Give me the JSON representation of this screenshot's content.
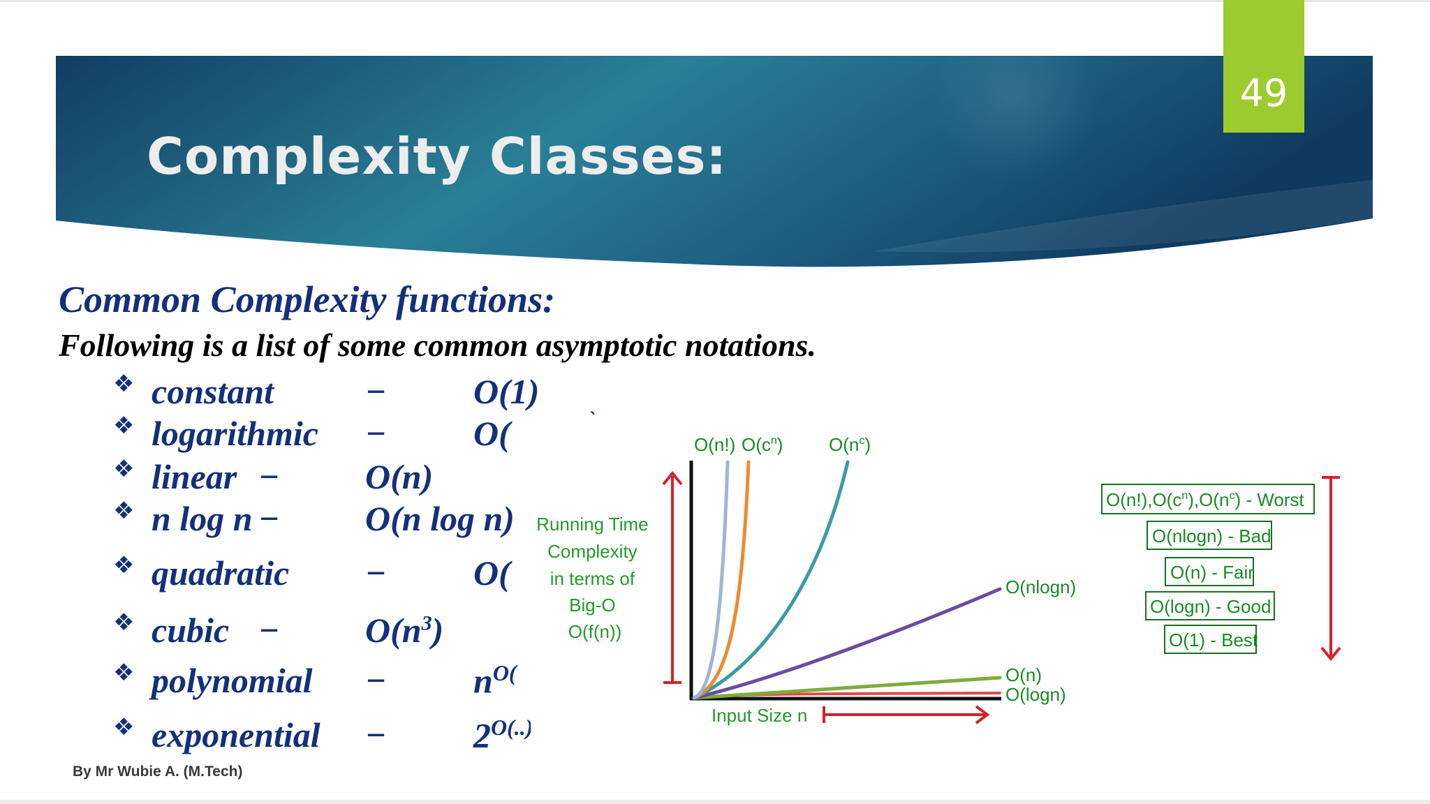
{
  "slide": {
    "title": "Complexity Classes:",
    "page_number": "49",
    "subtitle": "Common Complexity functions:",
    "intro": "Following is a list of some common asymptotic notations.",
    "footer": "By Mr Wubie A. (M.Tech)"
  },
  "list": {
    "bullet_glyph": "❖",
    "items": [
      {
        "term": "constant",
        "dash": "−",
        "notation": "O(1)"
      },
      {
        "term": "logarithmic",
        "dash": "−",
        "notation": "O(",
        "tail": "`"
      },
      {
        "term": "linear",
        "dash": "−",
        "notation": "O(n)"
      },
      {
        "term": "n log n",
        "dash": "−",
        "notation": "O(n log n)"
      },
      {
        "term": "quadratic",
        "dash": "−",
        "notation": "O("
      },
      {
        "term": "cubic",
        "dash": "−",
        "notation": "O(n",
        "sup": "3",
        "close": ")"
      },
      {
        "term": "polynomial",
        "dash": "−",
        "notation": "n",
        "sup": "O("
      },
      {
        "term": "exponential",
        "dash": "−",
        "notation": "2",
        "sup": "O(..)"
      }
    ]
  },
  "figure": {
    "ylabel_lines": [
      "Running Time",
      "Complexity",
      "in terms of",
      "Big-O",
      "O(f(n))"
    ],
    "xlabel": "Input Size n",
    "top_labels": {
      "fact": "O(n!)",
      "cn": "O(c",
      "cn_sup": "n",
      "cn_close": ")",
      "nc": "O(n",
      "nc_sup": "c",
      "nc_close": ")"
    },
    "right_labels": {
      "nlogn": "O(nlogn)",
      "n": "O(n)",
      "logn": "O(logn)"
    },
    "legend": [
      {
        "text": "O(n!),O(c",
        "sup1": "n",
        "mid": "),O(n",
        "sup2": "c",
        "end": ") - Worst"
      },
      {
        "text": "O(nlogn) - Bad"
      },
      {
        "text": "O(n) - Fair"
      },
      {
        "text": "O(logn) - Good"
      },
      {
        "text": "O(1) - Best"
      }
    ],
    "colors": {
      "label_green": "#239a2a",
      "arrow_red": "#d6202a",
      "factorial": "#9fb4da",
      "exponential": "#ee8a2f",
      "polynomial": "#3a9aa8",
      "nlogn": "#6a4ca4",
      "linear": "#7cad3c",
      "log": "#e0484a"
    }
  },
  "colors": {
    "banner_dark": "#113e63",
    "banner_mid": "#2c7b95",
    "title_text": "#ededed",
    "page_box": "#9dcb2f",
    "heading_blue": "#14307a"
  }
}
